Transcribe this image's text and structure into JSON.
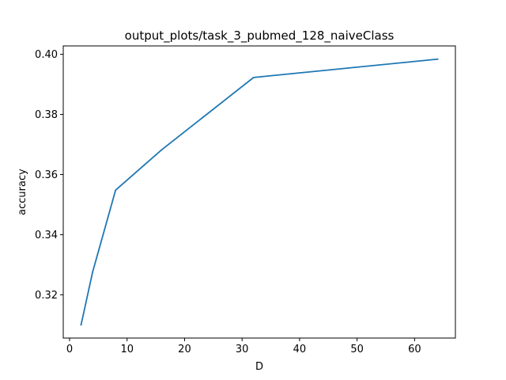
{
  "chart_data": {
    "type": "line",
    "title": "output_plots/task_3_pubmed_128_naiveClass",
    "xlabel": "D",
    "ylabel": "accuracy",
    "x": [
      2,
      4,
      8,
      16,
      32,
      64
    ],
    "series": [
      {
        "values": [
          0.31,
          0.3275,
          0.3548,
          0.3682,
          0.3923,
          0.3984
        ],
        "color": "#1f77b4"
      }
    ],
    "xlim": [
      -1.1,
      67.1
    ],
    "ylim": [
      0.3056,
      0.4028
    ],
    "xticks": [
      0,
      10,
      20,
      30,
      40,
      50,
      60
    ],
    "xtick_labels": [
      "0",
      "10",
      "20",
      "30",
      "40",
      "50",
      "60"
    ],
    "yticks": [
      0.32,
      0.34,
      0.36,
      0.38,
      0.4
    ],
    "ytick_labels": [
      "0.32",
      "0.34",
      "0.36",
      "0.38",
      "0.40"
    ],
    "grid": false,
    "legend": "none"
  }
}
